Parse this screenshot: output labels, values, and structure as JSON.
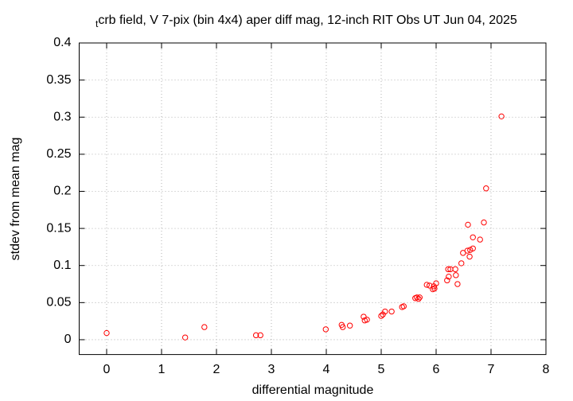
{
  "chart_data": {
    "type": "scatter",
    "title": "tcrb field, V 7-pix (bin 4x4) aper diff mag,  12-inch RIT Obs UT Jun 04, 2025",
    "x_label": "differential magnitude",
    "y_label": "stdev from mean mag",
    "xlim": [
      -0.5,
      8
    ],
    "xticks": [
      0,
      1,
      2,
      3,
      4,
      5,
      6,
      7,
      8
    ],
    "ylim": [
      -0.02,
      0.4
    ],
    "yticks": [
      0,
      0.05,
      0.1,
      0.15,
      0.2,
      0.25,
      0.3,
      0.35,
      0.4
    ],
    "grid": true,
    "color": "#ff0000",
    "x": [
      0,
      1.43,
      1.78,
      2.72,
      2.8,
      3.99,
      4.28,
      4.3,
      4.43,
      4.68,
      4.7,
      4.74,
      5.0,
      5.03,
      5.07,
      5.19,
      5.38,
      5.41,
      5.62,
      5.65,
      5.68,
      5.7,
      5.83,
      5.88,
      5.94,
      5.97,
      6.0,
      5.96,
      6.2,
      6.23,
      6.22,
      6.26,
      6.35,
      6.36,
      6.39,
      6.46,
      6.49,
      6.57,
      6.61,
      6.62,
      6.67,
      6.58,
      6.67,
      6.8,
      6.87,
      6.91,
      7.19
    ],
    "values": [
      0.009,
      0.003,
      0.017,
      0.006,
      0.006,
      0.014,
      0.02,
      0.017,
      0.019,
      0.031,
      0.026,
      0.027,
      0.032,
      0.034,
      0.038,
      0.038,
      0.044,
      0.045,
      0.056,
      0.057,
      0.055,
      0.057,
      0.074,
      0.073,
      0.068,
      0.069,
      0.076,
      0.072,
      0.08,
      0.085,
      0.095,
      0.095,
      0.095,
      0.087,
      0.075,
      0.103,
      0.117,
      0.12,
      0.112,
      0.121,
      0.123,
      0.155,
      0.138,
      0.135,
      0.158,
      0.204,
      0.301
    ]
  }
}
